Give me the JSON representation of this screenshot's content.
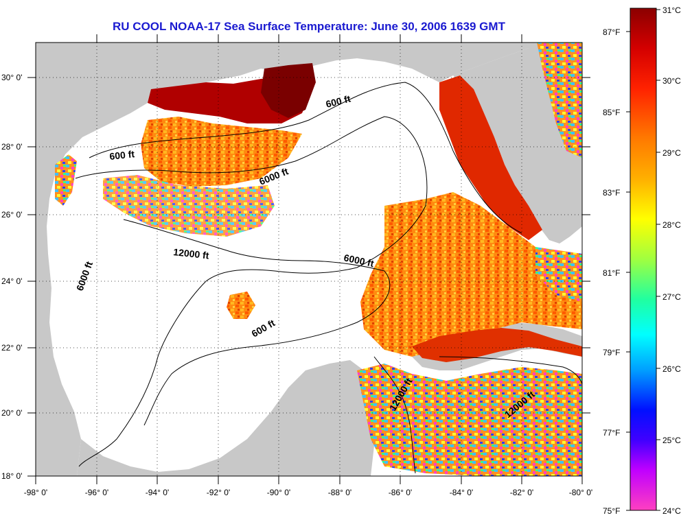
{
  "title": "RU COOL  NOAA-17  Sea Surface Temperature:  June 30, 2006 1639 GMT",
  "lat_labels": [
    "30° 0'",
    "28° 0'",
    "26° 0'",
    "24° 0'",
    "22° 0'",
    "20° 0'",
    "18° 0'"
  ],
  "lon_labels": [
    "-98° 0'",
    "-96° 0'",
    "-94° 0'",
    "-92° 0'",
    "-90° 0'",
    "-88° 0'",
    "-86° 0'",
    "-84° 0'",
    "-82° 0'",
    "-80° 0'"
  ],
  "contour_labels": [
    {
      "id": "c600-ne",
      "text": "600 ft"
    },
    {
      "id": "c600-nw",
      "text": "600 ft"
    },
    {
      "id": "c6000-n",
      "text": "6000 ft"
    },
    {
      "id": "c12000-c",
      "text": "12000 ft"
    },
    {
      "id": "c6000-w",
      "text": "6000 ft"
    },
    {
      "id": "c6000-e",
      "text": "6000 ft"
    },
    {
      "id": "c600-s",
      "text": "600 ft"
    },
    {
      "id": "c12000-yuc",
      "text": "12000 ft"
    },
    {
      "id": "c12000-cayman",
      "text": "12000 ft"
    }
  ],
  "colorbar": {
    "celsius": [
      "31°C",
      "30°C",
      "29°C",
      "28°C",
      "27°C",
      "26°C",
      "25°C",
      "24°C"
    ],
    "fahrenheit": [
      "87°F",
      "85°F",
      "83°F",
      "81°F",
      "79°F",
      "77°F",
      "75°F"
    ]
  },
  "colors": {
    "land": "#c8c8c8",
    "ocean_clouds": "#ffffff",
    "title_color": "#1a1ad0"
  }
}
